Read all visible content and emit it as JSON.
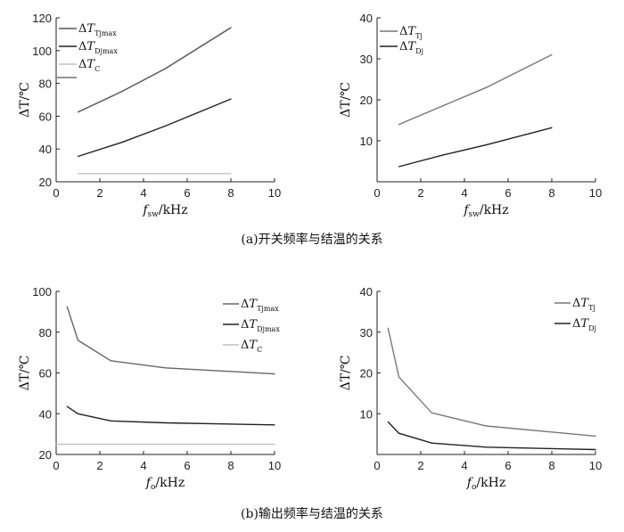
{
  "captions": {
    "a": "(a)开关频率与结温的关系",
    "b": "(b)输出频率与结温的关系"
  },
  "chart_data": [
    {
      "id": "a-left",
      "type": "line",
      "ylabel": "ΔT/℃",
      "xlabel": {
        "main": "f",
        "sub": "sw",
        "unit": "/kHz"
      },
      "xlim": [
        0,
        10
      ],
      "ylim": [
        20,
        120
      ],
      "xticks": [
        "0",
        "2",
        "4",
        "6",
        "8",
        "10"
      ],
      "yticks": [
        "20",
        "40",
        "60",
        "80",
        "100",
        "120"
      ],
      "grid": false,
      "legend_position": "top-left",
      "series": [
        {
          "name_main": "ΔT",
          "name_sub": "Tjmax",
          "color": "#555555",
          "x": [
            1,
            3,
            5,
            8
          ],
          "y": [
            62.5,
            75,
            89,
            114
          ]
        },
        {
          "name_main": "ΔT",
          "name_sub": "Djmax",
          "color": "#222222",
          "x": [
            1,
            3,
            5,
            8
          ],
          "y": [
            35.5,
            44,
            54,
            70.5
          ]
        },
        {
          "name_main": "ΔT",
          "name_sub": "C",
          "color": "#c0c0c0",
          "x": [
            1,
            8
          ],
          "y": [
            25,
            25
          ]
        }
      ]
    },
    {
      "id": "a-right",
      "type": "line",
      "ylabel": "ΔT/℃",
      "xlabel": {
        "main": "f",
        "sub": "sw",
        "unit": "/kHz"
      },
      "xlim": [
        0,
        10
      ],
      "ylim": [
        0,
        40
      ],
      "xticks": [
        "0",
        "2",
        "4",
        "6",
        "8",
        "10"
      ],
      "yticks": [
        "10",
        "20",
        "30",
        "40"
      ],
      "grid": false,
      "legend_position": "top-left",
      "series": [
        {
          "name_main": "ΔT",
          "name_sub": "Tj",
          "color": "#777777",
          "x": [
            1,
            3,
            5,
            8
          ],
          "y": [
            14,
            18.5,
            23,
            31
          ]
        },
        {
          "name_main": "ΔT",
          "name_sub": "Dj",
          "color": "#222222",
          "x": [
            1,
            3,
            5,
            8
          ],
          "y": [
            3.7,
            6.5,
            9,
            13.2
          ]
        }
      ]
    },
    {
      "id": "b-left",
      "type": "line",
      "ylabel": "ΔT/℃",
      "xlabel": {
        "main": "f",
        "sub": "o",
        "unit": "/kHz"
      },
      "xlim": [
        0,
        10
      ],
      "ylim": [
        20,
        100
      ],
      "xticks": [
        "0",
        "2",
        "4",
        "6",
        "8",
        "10"
      ],
      "yticks": [
        "20",
        "40",
        "60",
        "80",
        "100"
      ],
      "grid": false,
      "legend_position": "top-right",
      "series": [
        {
          "name_main": "ΔT",
          "name_sub": "Tjmax",
          "color": "#666666",
          "x": [
            0.5,
            1,
            2.5,
            5,
            10
          ],
          "y": [
            92.5,
            76,
            66,
            62.5,
            59.5
          ]
        },
        {
          "name_main": "ΔT",
          "name_sub": "Djmax",
          "color": "#222222",
          "x": [
            0.5,
            1,
            2.5,
            5,
            10
          ],
          "y": [
            43.5,
            40,
            36.5,
            35.5,
            34.5
          ]
        },
        {
          "name_main": "ΔT",
          "name_sub": "C",
          "color": "#c0c0c0",
          "x": [
            0,
            10
          ],
          "y": [
            25,
            25
          ]
        }
      ]
    },
    {
      "id": "b-right",
      "type": "line",
      "ylabel": "ΔT/℃",
      "xlabel": {
        "main": "f",
        "sub": "o",
        "unit": "/kHz"
      },
      "xlim": [
        0,
        10
      ],
      "ylim": [
        0,
        40
      ],
      "xticks": [
        "0",
        "2",
        "4",
        "6",
        "8",
        "10"
      ],
      "yticks": [
        "10",
        "20",
        "30",
        "40"
      ],
      "grid": false,
      "legend_position": "top-right",
      "series": [
        {
          "name_main": "ΔT",
          "name_sub": "Tj",
          "color": "#777777",
          "x": [
            0.5,
            1,
            2.5,
            5,
            10
          ],
          "y": [
            31,
            19,
            10.2,
            7,
            4.5
          ]
        },
        {
          "name_main": "ΔT",
          "name_sub": "Dj",
          "color": "#222222",
          "x": [
            0.5,
            1,
            2.5,
            5,
            10
          ],
          "y": [
            8,
            5.2,
            2.8,
            1.8,
            1.2
          ]
        }
      ]
    }
  ]
}
